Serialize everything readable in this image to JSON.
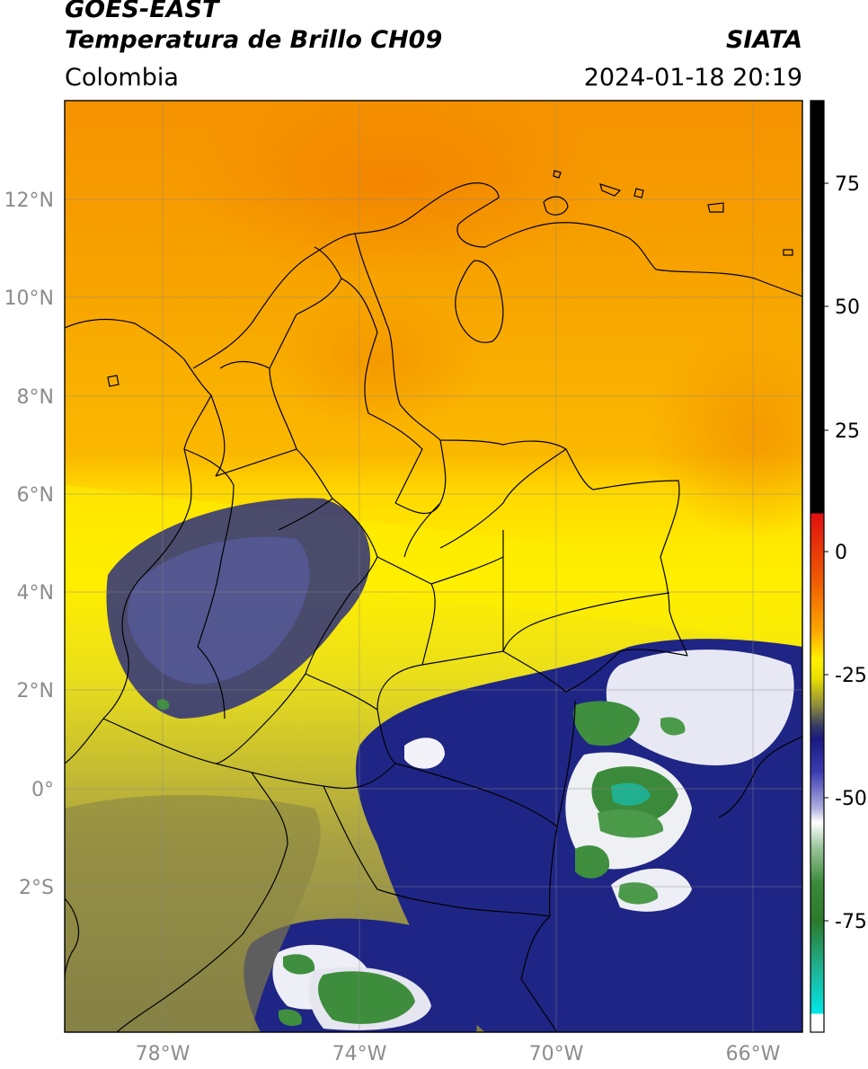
{
  "header": {
    "satellite": "GOES-EAST",
    "product": "Temperatura de Brillo CH09",
    "region": "Colombia",
    "agency": "SIATA",
    "datetime": "2024-01-18 20:19"
  },
  "map": {
    "lon_range": [
      -80,
      -65
    ],
    "lat_range": [
      -5,
      14
    ],
    "lat_ticks": [
      {
        "value": 12,
        "label": "12°N"
      },
      {
        "value": 10,
        "label": "10°N"
      },
      {
        "value": 8,
        "label": "8°N"
      },
      {
        "value": 6,
        "label": "6°N"
      },
      {
        "value": 4,
        "label": "4°N"
      },
      {
        "value": 2,
        "label": "2°N"
      },
      {
        "value": 0,
        "label": "0°"
      },
      {
        "value": -2,
        "label": "2°S"
      }
    ],
    "lon_ticks": [
      {
        "value": -78,
        "label": "78°W"
      },
      {
        "value": -74,
        "label": "74°W"
      },
      {
        "value": -70,
        "label": "70°W"
      },
      {
        "value": -66,
        "label": "66°W"
      }
    ],
    "grid": true
  },
  "colorbar": {
    "range": [
      -95,
      90
    ],
    "ticks": [
      {
        "value": 75,
        "label": "75"
      },
      {
        "value": 50,
        "label": "50"
      },
      {
        "value": 25,
        "label": "25"
      },
      {
        "value": 0,
        "label": "0"
      },
      {
        "value": -25,
        "label": "-25"
      },
      {
        "value": -50,
        "label": "-50"
      },
      {
        "value": -75,
        "label": "-75"
      }
    ]
  }
}
